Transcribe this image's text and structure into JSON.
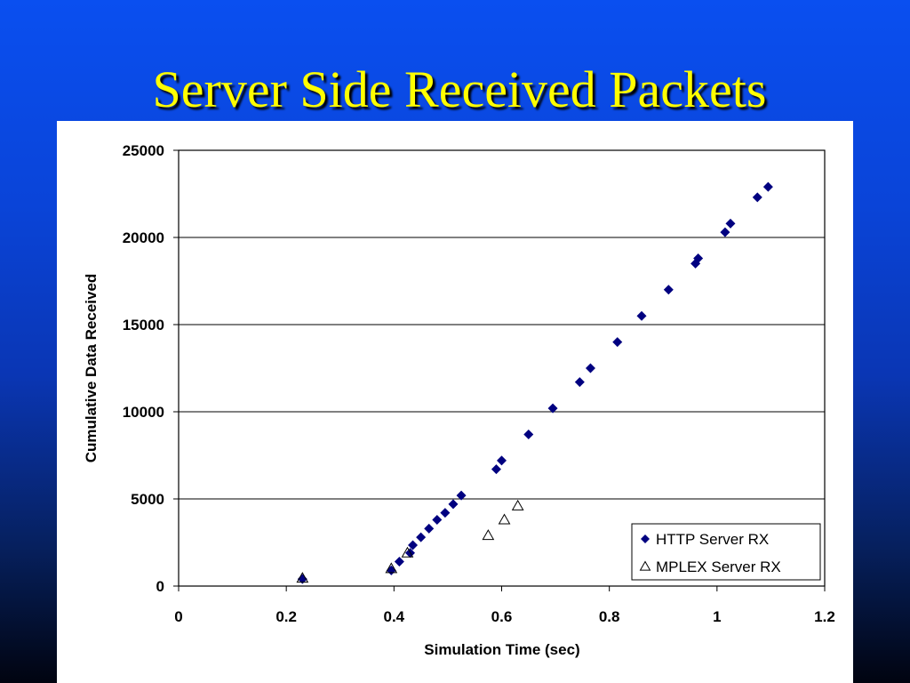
{
  "slide": {
    "title": "Server Side Received Packets"
  },
  "chart_data": {
    "type": "scatter",
    "xlabel": "Simulation Time (sec)",
    "ylabel": "Cumulative Data Received",
    "xlim": [
      0,
      1.2
    ],
    "ylim": [
      0,
      25000
    ],
    "xticks": [
      0,
      0.2,
      0.4,
      0.6,
      0.8,
      1,
      1.2
    ],
    "yticks": [
      0,
      5000,
      10000,
      15000,
      20000,
      25000
    ],
    "grid": "horizontal",
    "legend_position": "bottom-right",
    "series": [
      {
        "name": "HTTP Server RX",
        "marker": "diamond",
        "color": "#000080",
        "points": [
          [
            0.23,
            400
          ],
          [
            0.395,
            900
          ],
          [
            0.41,
            1400
          ],
          [
            0.43,
            1900
          ],
          [
            0.435,
            2350
          ],
          [
            0.45,
            2800
          ],
          [
            0.465,
            3300
          ],
          [
            0.48,
            3800
          ],
          [
            0.495,
            4200
          ],
          [
            0.51,
            4700
          ],
          [
            0.525,
            5200
          ],
          [
            0.59,
            6700
          ],
          [
            0.6,
            7200
          ],
          [
            0.65,
            8700
          ],
          [
            0.695,
            10200
          ],
          [
            0.745,
            11700
          ],
          [
            0.765,
            12500
          ],
          [
            0.815,
            14000
          ],
          [
            0.86,
            15500
          ],
          [
            0.91,
            17000
          ],
          [
            0.96,
            18500
          ],
          [
            0.965,
            18800
          ],
          [
            1.015,
            20300
          ],
          [
            1.025,
            20800
          ],
          [
            1.075,
            22300
          ],
          [
            1.095,
            22900
          ]
        ]
      },
      {
        "name": "MPLEX Server RX",
        "marker": "triangle",
        "color": "#000000",
        "points": [
          [
            0.23,
            450
          ],
          [
            0.395,
            1000
          ],
          [
            0.425,
            1900
          ],
          [
            0.575,
            2900
          ],
          [
            0.605,
            3800
          ],
          [
            0.63,
            4600
          ]
        ]
      }
    ]
  }
}
